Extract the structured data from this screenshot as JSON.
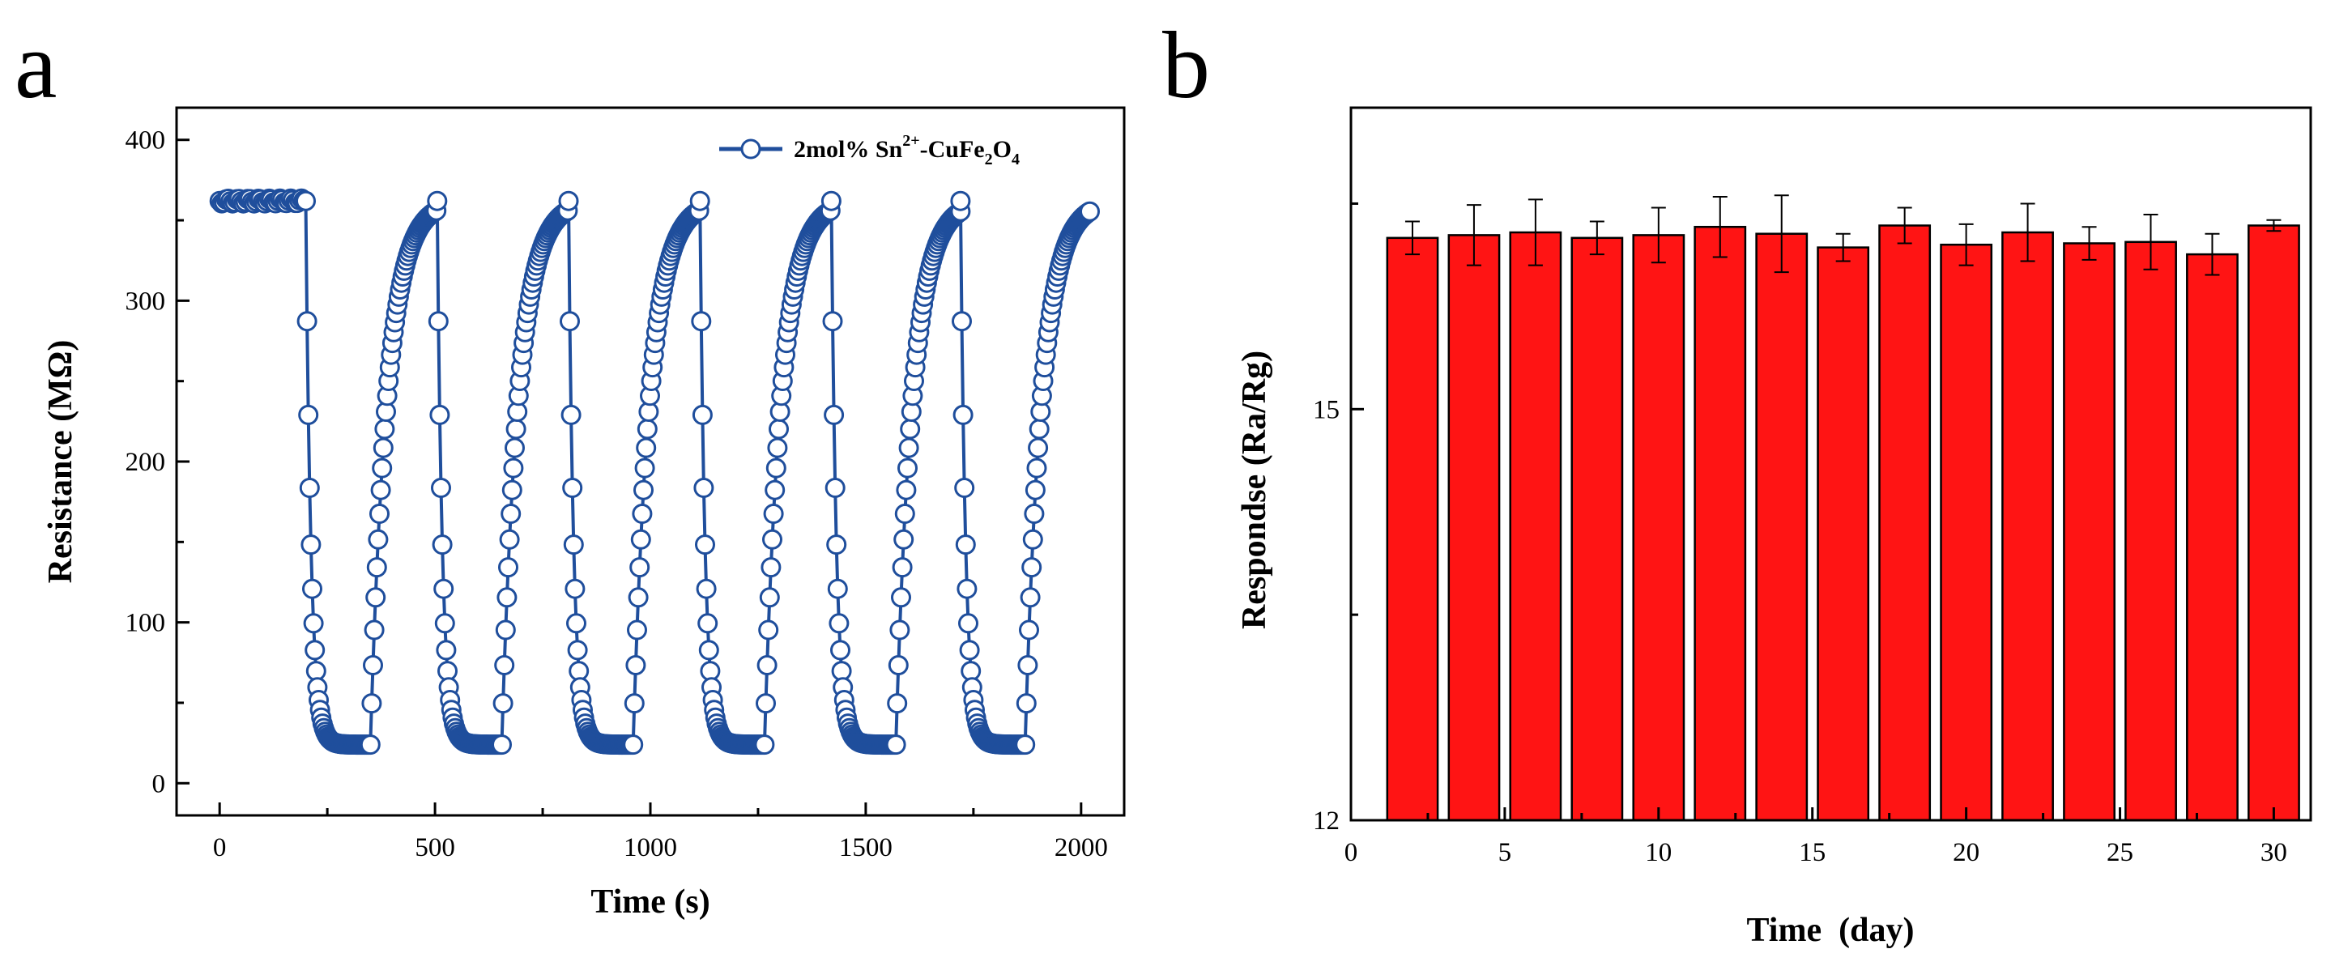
{
  "panels": [
    "a",
    "b"
  ],
  "chart_data": [
    {
      "type": "line",
      "panel": "a",
      "title": "",
      "xlabel": "Time (s)",
      "ylabel": "Resistance (MΩ)",
      "xlim": [
        -100,
        2100
      ],
      "ylim": [
        -20,
        420
      ],
      "xticks": [
        0,
        500,
        1000,
        1500,
        2000
      ],
      "yticks": [
        0,
        100,
        200,
        300,
        400
      ],
      "color": "#1f4e9c",
      "marker": "open-circle",
      "legend": {
        "label_pre": "2mol% Sn",
        "label_sup": "2+",
        "label_mid": "-CuFe",
        "label_sub1": "2",
        "label_mid2": "O",
        "label_sub2": "4",
        "position": "top-right"
      },
      "cycles": {
        "baseline_start": 0,
        "baseline_end": 200,
        "air_value": 362,
        "gas_value": 24,
        "gas_on_times": [
          200,
          505,
          810,
          1115,
          1420,
          1720
        ],
        "gas_off_times": [
          350,
          655,
          960,
          1265,
          1570,
          1870
        ],
        "end_time": 2020
      }
    },
    {
      "type": "bar",
      "panel": "b",
      "title": "",
      "xlabel": "Time  (day)",
      "ylabel": "Respondse (Ra/Rg)",
      "xlim": [
        0,
        31.2
      ],
      "ylim": [
        12,
        17.2
      ],
      "xticks": [
        0,
        5,
        10,
        15,
        20,
        25,
        30
      ],
      "yticks": [
        12,
        15
      ],
      "bar_color": "#ff1414",
      "x": [
        2,
        4,
        6,
        8,
        10,
        12,
        14,
        16,
        18,
        20,
        22,
        24,
        26,
        28,
        30
      ],
      "values": [
        16.25,
        16.27,
        16.29,
        16.25,
        16.27,
        16.33,
        16.28,
        16.18,
        16.34,
        16.2,
        16.29,
        16.21,
        16.22,
        16.13,
        16.34
      ],
      "errors": [
        0.12,
        0.22,
        0.24,
        0.12,
        0.2,
        0.22,
        0.28,
        0.1,
        0.13,
        0.15,
        0.21,
        0.12,
        0.2,
        0.15,
        0.04
      ]
    }
  ]
}
